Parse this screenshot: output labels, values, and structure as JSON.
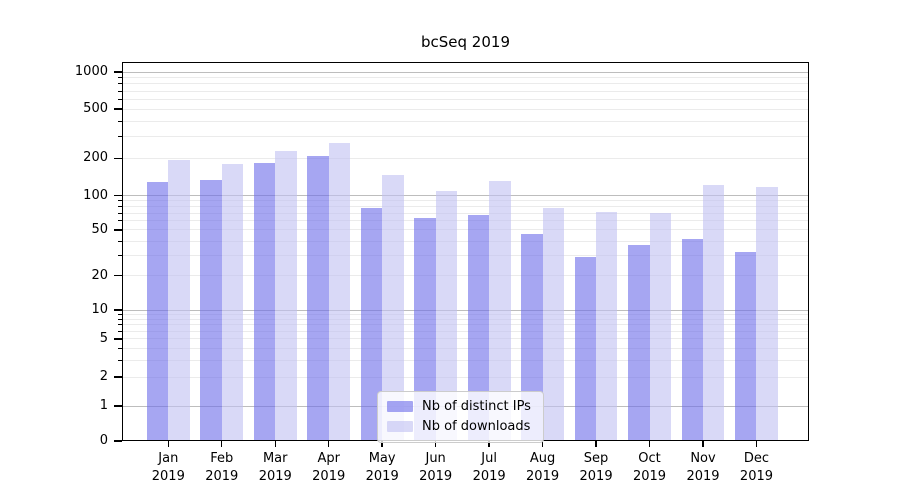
{
  "chart_data": {
    "type": "bar",
    "title": "bcSeq 2019",
    "year": "2019",
    "categories": [
      "Jan",
      "Feb",
      "Mar",
      "Apr",
      "May",
      "Jun",
      "Jul",
      "Aug",
      "Sep",
      "Oct",
      "Nov",
      "Dec"
    ],
    "series": [
      {
        "name": "Nb of distinct IPs",
        "color": "#a6a6f2",
        "css_color": "rgba(107,107,233,0.6)",
        "values": [
          128,
          134,
          185,
          210,
          77,
          64,
          67,
          46,
          29,
          37,
          42,
          32
        ]
      },
      {
        "name": "Nb of downloads",
        "color": "#d9d9f7",
        "css_color": "rgba(192,192,242,0.6)",
        "values": [
          193,
          181,
          228,
          264,
          146,
          108,
          132,
          78,
          72,
          70,
          121,
          117
        ]
      }
    ],
    "y_scale": "symlog",
    "y_ticks": [
      0,
      1,
      2,
      5,
      10,
      20,
      50,
      100,
      200,
      500,
      1000
    ],
    "ylim": [
      0,
      1000
    ],
    "grid": true,
    "legend_position": "lower center",
    "xlabel": "",
    "ylabel": ""
  }
}
